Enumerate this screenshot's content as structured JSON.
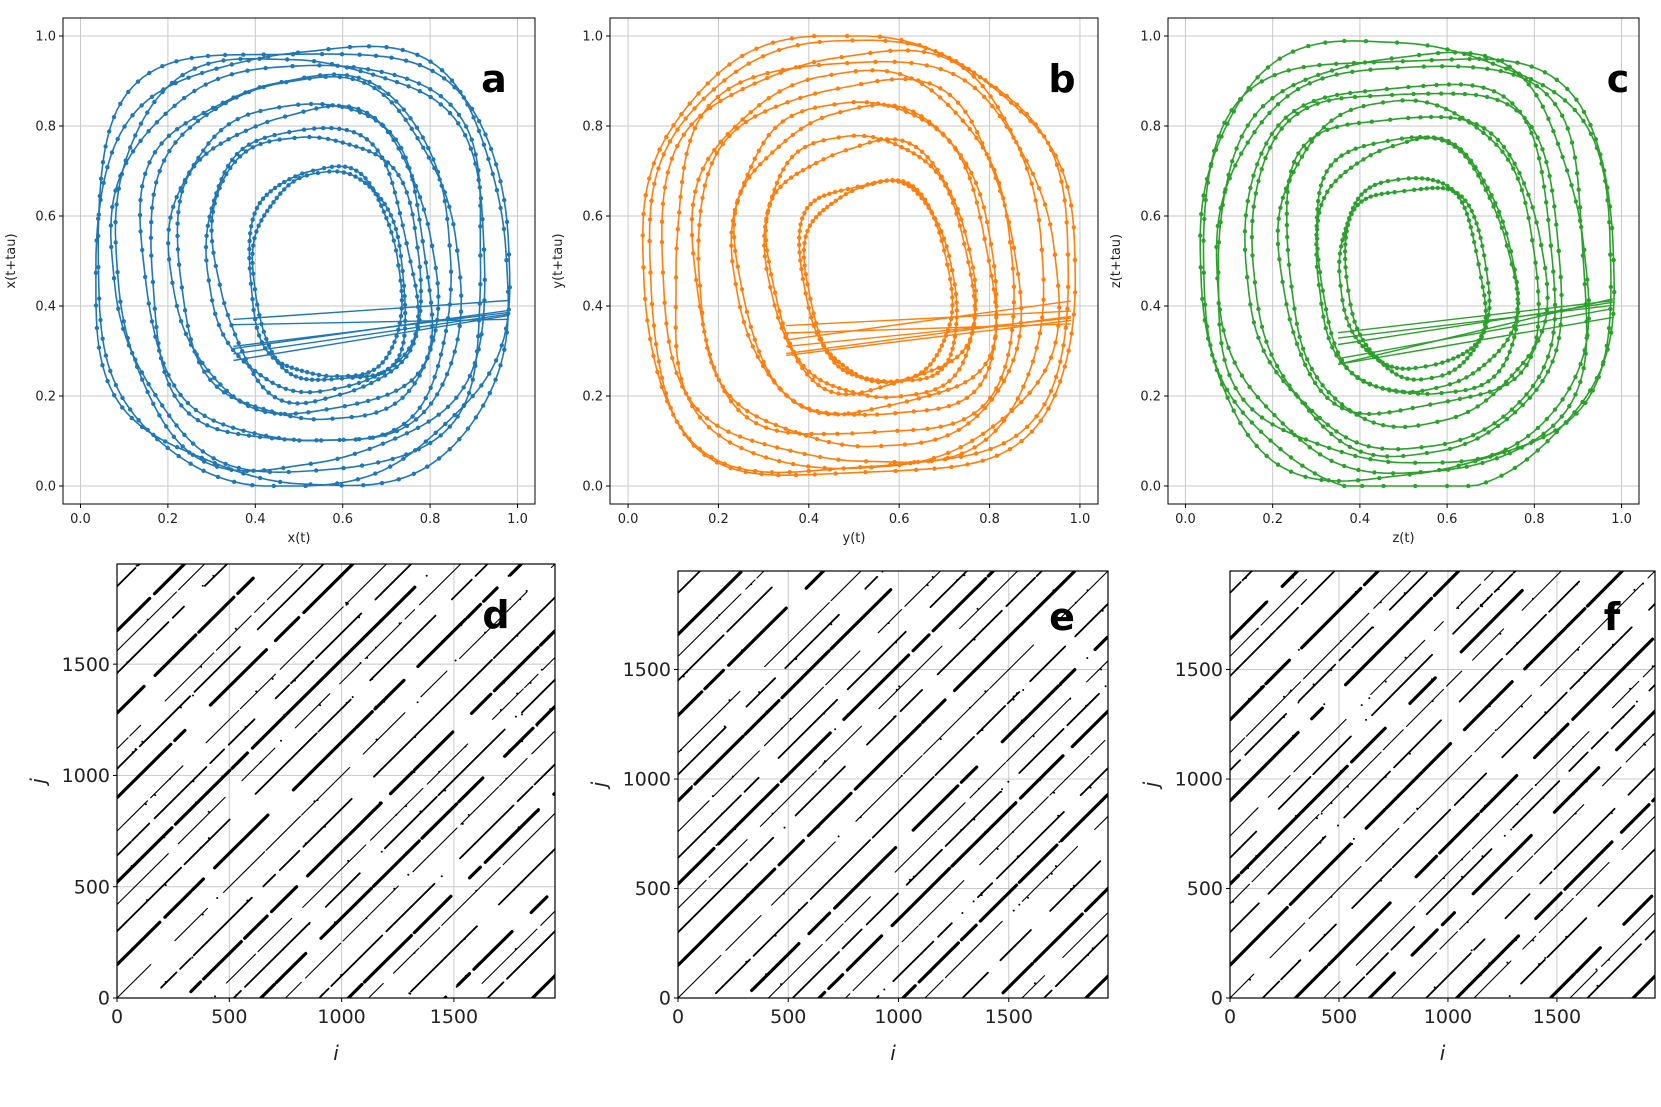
{
  "chart_data": [
    {
      "panel": "a",
      "type": "line",
      "subtype": "phase-space",
      "xlabel": "x(t)",
      "ylabel": "x(t+tau)",
      "xlim": [
        -0.04,
        1.04
      ],
      "ylim": [
        -0.04,
        1.04
      ],
      "xticks": [
        "0.0",
        "0.2",
        "0.4",
        "0.6",
        "0.8",
        "1.0"
      ],
      "yticks": [
        "0.0",
        "0.2",
        "0.4",
        "0.6",
        "0.8",
        "1.0"
      ],
      "grid": true,
      "color": "#1f77b4",
      "loops": [
        {
          "cx": 0.56,
          "cy": 0.47,
          "rx": 0.17,
          "ry": 0.23,
          "rot": 0.12
        },
        {
          "cx": 0.53,
          "cy": 0.5,
          "rx": 0.23,
          "ry": 0.29,
          "rot": 0.18
        },
        {
          "cx": 0.51,
          "cy": 0.5,
          "rx": 0.29,
          "ry": 0.34,
          "rot": 0.16
        },
        {
          "cx": 0.5,
          "cy": 0.5,
          "rx": 0.35,
          "ry": 0.4,
          "rot": 0.1
        },
        {
          "cx": 0.5,
          "cy": 0.5,
          "rx": 0.42,
          "ry": 0.45,
          "rot": 0.06
        },
        {
          "cx": 0.5,
          "cy": 0.5,
          "rx": 0.47,
          "ry": 0.48,
          "rot": 0.03
        }
      ]
    },
    {
      "panel": "b",
      "type": "line",
      "subtype": "phase-space",
      "xlabel": "y(t)",
      "ylabel": "y(t+tau)",
      "xlim": [
        -0.04,
        1.04
      ],
      "ylim": [
        -0.04,
        1.04
      ],
      "xticks": [
        "0.0",
        "0.2",
        "0.4",
        "0.6",
        "0.8",
        "1.0"
      ],
      "yticks": [
        "0.0",
        "0.2",
        "0.4",
        "0.6",
        "0.8",
        "1.0"
      ],
      "grid": true,
      "color": "#ff7f0e",
      "loops": [
        {
          "cx": 0.55,
          "cy": 0.46,
          "rx": 0.16,
          "ry": 0.22,
          "rot": 0.2
        },
        {
          "cx": 0.53,
          "cy": 0.49,
          "rx": 0.22,
          "ry": 0.28,
          "rot": 0.22
        },
        {
          "cx": 0.52,
          "cy": 0.5,
          "rx": 0.28,
          "ry": 0.34,
          "rot": 0.18
        },
        {
          "cx": 0.5,
          "cy": 0.5,
          "rx": 0.35,
          "ry": 0.4,
          "rot": 0.12
        },
        {
          "cx": 0.5,
          "cy": 0.5,
          "rx": 0.42,
          "ry": 0.45,
          "rot": 0.06
        },
        {
          "cx": 0.5,
          "cy": 0.5,
          "rx": 0.47,
          "ry": 0.48,
          "rot": 0.03
        }
      ]
    },
    {
      "panel": "c",
      "type": "line",
      "subtype": "phase-space",
      "xlabel": "z(t)",
      "ylabel": "z(t+tau)",
      "xlim": [
        -0.04,
        1.04
      ],
      "ylim": [
        -0.04,
        1.04
      ],
      "xticks": [
        "0.0",
        "0.2",
        "0.4",
        "0.6",
        "0.8",
        "1.0"
      ],
      "yticks": [
        "0.0",
        "0.2",
        "0.4",
        "0.6",
        "0.8",
        "1.0"
      ],
      "grid": true,
      "color": "#2ca02c",
      "loops": [
        {
          "cx": 0.52,
          "cy": 0.47,
          "rx": 0.16,
          "ry": 0.21,
          "rot": 0.15
        },
        {
          "cx": 0.52,
          "cy": 0.49,
          "rx": 0.22,
          "ry": 0.28,
          "rot": 0.2
        },
        {
          "cx": 0.51,
          "cy": 0.5,
          "rx": 0.29,
          "ry": 0.34,
          "rot": 0.16
        },
        {
          "cx": 0.5,
          "cy": 0.5,
          "rx": 0.35,
          "ry": 0.4,
          "rot": 0.1
        },
        {
          "cx": 0.5,
          "cy": 0.5,
          "rx": 0.42,
          "ry": 0.45,
          "rot": 0.06
        },
        {
          "cx": 0.5,
          "cy": 0.5,
          "rx": 0.47,
          "ry": 0.48,
          "rot": 0.03
        }
      ]
    },
    {
      "panel": "d",
      "type": "heatmap",
      "subtype": "recurrence-plot",
      "xlabel": "i",
      "ylabel": "j",
      "xlim": [
        0,
        1950
      ],
      "ylim": [
        0,
        1950
      ],
      "xticks": [
        0,
        500,
        1000,
        1500
      ],
      "yticks": [
        0,
        500,
        1000,
        1500
      ],
      "xtick_labels": [
        "0",
        "500",
        "1000",
        "1500"
      ],
      "ytick_labels": [
        "0",
        "500",
        "1000",
        "1500"
      ],
      "grid": true,
      "color": "#000000",
      "diagonal_offsets": [
        -1850,
        -1650,
        -1560,
        -1460,
        -1280,
        -1120,
        -1030,
        -900,
        -750,
        -640,
        -520,
        -420,
        -300,
        -150,
        0,
        150,
        300,
        420,
        520,
        640,
        750,
        900,
        1030,
        1120,
        1280,
        1460,
        1560,
        1650,
        1850
      ]
    },
    {
      "panel": "e",
      "type": "heatmap",
      "subtype": "recurrence-plot",
      "xlabel": "i",
      "ylabel": "j",
      "xlim": [
        0,
        1950
      ],
      "ylim": [
        0,
        1950
      ],
      "xticks": [
        0,
        500,
        1000,
        1500
      ],
      "yticks": [
        0,
        500,
        1000,
        1500
      ],
      "xtick_labels": [
        "0",
        "500",
        "1000",
        "1500"
      ],
      "ytick_labels": [
        "0",
        "500",
        "1000",
        "1500"
      ],
      "grid": true,
      "color": "#000000",
      "diagonal_offsets": [
        -1850,
        -1660,
        -1560,
        -1450,
        -1290,
        -1120,
        -1020,
        -900,
        -760,
        -640,
        -520,
        -410,
        -300,
        -150,
        0,
        150,
        300,
        410,
        520,
        640,
        760,
        900,
        1020,
        1120,
        1290,
        1450,
        1560,
        1660,
        1850
      ]
    },
    {
      "panel": "f",
      "type": "heatmap",
      "subtype": "recurrence-plot",
      "xlabel": "i",
      "ylabel": "j",
      "xlim": [
        0,
        1950
      ],
      "ylim": [
        0,
        1950
      ],
      "xticks": [
        0,
        500,
        1000,
        1500
      ],
      "yticks": [
        0,
        500,
        1000,
        1500
      ],
      "xtick_labels": [
        "0",
        "500",
        "1000",
        "1500"
      ],
      "ytick_labels": [
        "0",
        "500",
        "1000",
        "1500"
      ],
      "grid": true,
      "color": "#000000",
      "diagonal_offsets": [
        -1850,
        -1640,
        -1560,
        -1470,
        -1270,
        -1120,
        -1040,
        -900,
        -740,
        -640,
        -520,
        -430,
        -300,
        -150,
        0,
        150,
        300,
        430,
        520,
        640,
        740,
        900,
        1040,
        1120,
        1270,
        1470,
        1560,
        1640,
        1850
      ]
    }
  ]
}
